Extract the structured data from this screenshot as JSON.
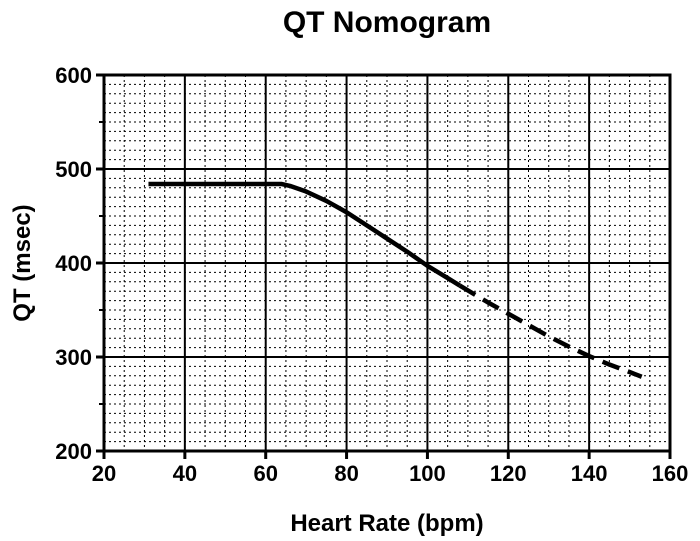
{
  "chart_data": {
    "type": "line",
    "title": "QT Nomogram",
    "xlabel": "Heart Rate (bpm)",
    "ylabel": "QT (msec)",
    "xlim": [
      20,
      160
    ],
    "ylim": [
      200,
      600
    ],
    "x_ticks": [
      20,
      40,
      60,
      80,
      100,
      120,
      140,
      160
    ],
    "y_ticks": [
      200,
      300,
      400,
      500,
      600
    ],
    "x_minor_step": 5,
    "y_minor_step": 10,
    "grid": true,
    "line_color": "#000000",
    "series": [
      {
        "style": "solid",
        "x": [
          31,
          64,
          66,
          70,
          75,
          80,
          85,
          90,
          95,
          100,
          105,
          108
        ],
        "y": [
          484,
          484,
          482,
          476,
          466,
          454,
          440,
          426,
          412,
          397,
          384,
          376
        ]
      },
      {
        "style": "dashed",
        "x": [
          108,
          115,
          120,
          125,
          130,
          135,
          140,
          145,
          150,
          153
        ],
        "y": [
          376,
          358,
          346,
          334,
          322,
          311,
          301,
          292,
          284,
          279
        ]
      }
    ]
  }
}
